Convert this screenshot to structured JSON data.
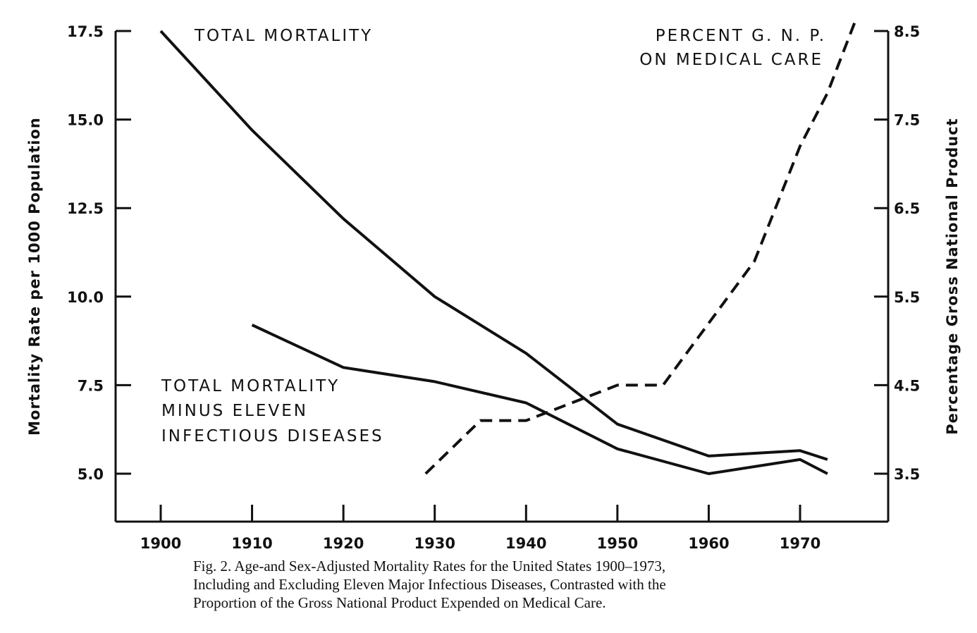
{
  "chart_data": {
    "type": "line",
    "x_ticks": [
      1900,
      1910,
      1920,
      1930,
      1940,
      1950,
      1960,
      1970
    ],
    "xlim": [
      1895,
      1977
    ],
    "y_left": {
      "label": "Mortality Rate per 1000 Population",
      "ticks": [
        "17.5",
        "15.0",
        "12.5",
        "10.0",
        "7.5",
        "5.0"
      ],
      "lim": [
        3.7,
        17.5
      ]
    },
    "y_right": {
      "label": "Percentage Gross National Product",
      "ticks": [
        "8.5",
        "7.5",
        "6.5",
        "5.5",
        "4.5",
        "3.5"
      ],
      "lim": [
        2.94,
        8.5
      ]
    },
    "series": [
      {
        "name": "TOTAL MORTALITY",
        "axis": "left",
        "style": "solid",
        "x": [
          1900,
          1910,
          1920,
          1930,
          1940,
          1950,
          1960,
          1970,
          1973
        ],
        "y": [
          17.5,
          14.7,
          12.2,
          10.0,
          8.4,
          6.4,
          5.5,
          5.65,
          5.4
        ]
      },
      {
        "name": "TOTAL MORTALITY MINUS ELEVEN INFECTIOUS DISEASES",
        "axis": "left",
        "style": "solid",
        "x": [
          1910,
          1920,
          1930,
          1940,
          1950,
          1960,
          1970,
          1973
        ],
        "y": [
          9.2,
          8.0,
          7.6,
          7.0,
          5.7,
          5.0,
          5.4,
          5.0
        ]
      },
      {
        "name": "PERCENT G.N.P. ON MEDICAL CARE",
        "axis": "right",
        "style": "dashed",
        "x": [
          1929,
          1935,
          1940,
          1950,
          1955,
          1960,
          1965,
          1970,
          1973,
          1976
        ],
        "y": [
          3.5,
          4.1,
          4.1,
          4.5,
          4.5,
          5.2,
          5.9,
          7.2,
          7.8,
          8.6
        ]
      }
    ],
    "annotations": {
      "total": [
        "TOTAL MORTALITY"
      ],
      "minus": [
        "TOTAL MORTALITY",
        "MINUS ELEVEN",
        "INFECTIOUS DISEASES"
      ],
      "gnp": [
        "PERCENT G. N. P.",
        "ON MEDICAL CARE"
      ]
    },
    "colors": {
      "ink": "#111111",
      "background": "#ffffff"
    }
  },
  "caption": {
    "line1": "Fig. 2. Age-and Sex-Adjusted Mortality Rates for the United States 1900–1973,",
    "line2": "Including and Excluding Eleven Major Infectious Diseases, Contrasted with the",
    "line3": "Proportion of the Gross National Product Expended on Medical Care."
  }
}
